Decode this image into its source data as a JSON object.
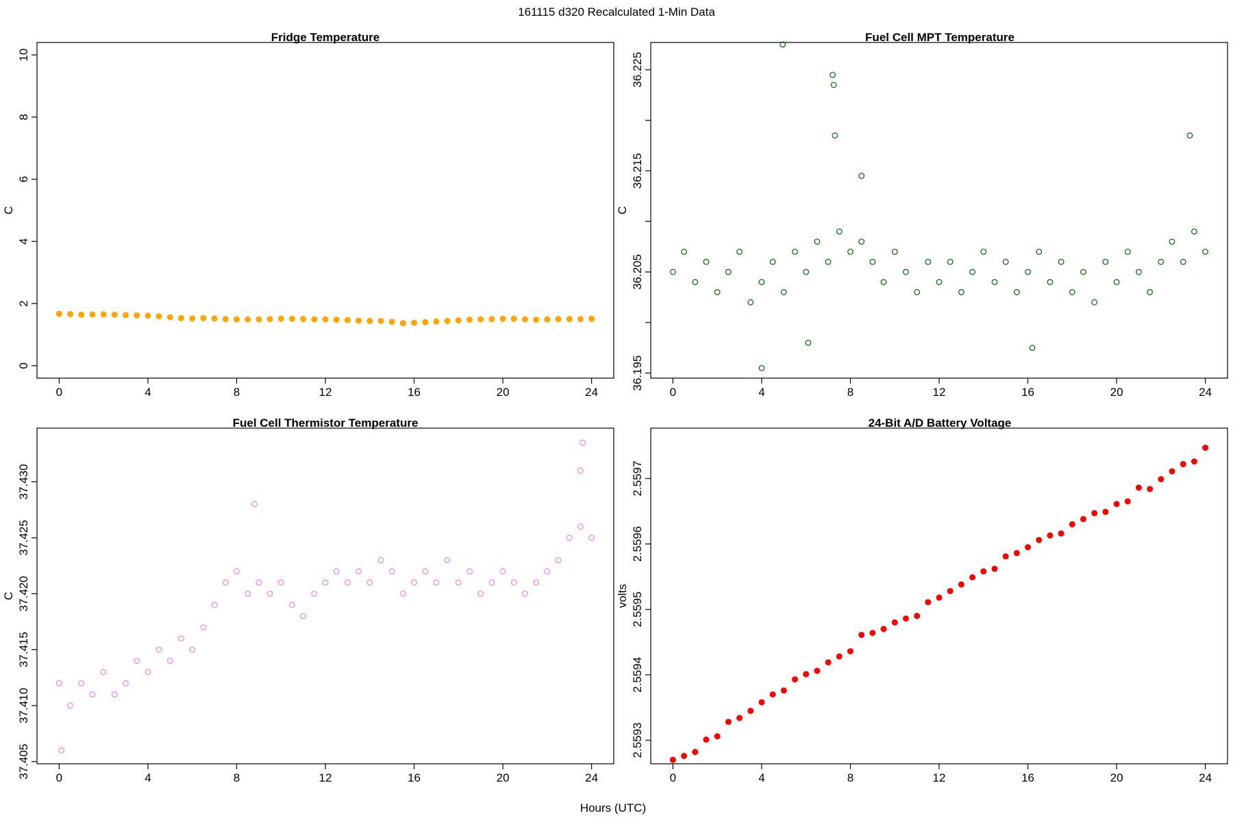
{
  "figure": {
    "suptitle": "161115   d320   Recalculated 1-Min Data",
    "xlabel": "Hours (UTC)"
  },
  "chart_data": [
    {
      "id": "fridge",
      "type": "scatter",
      "title": "Fridge Temperature",
      "ylabel": "C",
      "color": "#FFA500",
      "filled": true,
      "xlim": [
        -1,
        25
      ],
      "ylim": [
        -0.4,
        10.4
      ],
      "xticks": [
        0,
        4,
        8,
        12,
        16,
        20,
        24
      ],
      "xtick_labels": [
        "0",
        "4",
        "8",
        "12",
        "16",
        "20",
        "24"
      ],
      "yticks": [
        0,
        2,
        4,
        6,
        8,
        10
      ],
      "ytick_labels": [
        "0",
        "2",
        "4",
        "6",
        "8",
        "10"
      ],
      "x": [
        0,
        0.5,
        1,
        1.5,
        2,
        2.5,
        3,
        3.5,
        4,
        4.5,
        5,
        5.5,
        6,
        6.5,
        7,
        7.5,
        8,
        8.5,
        9,
        9.5,
        10,
        10.5,
        11,
        11.5,
        12,
        12.5,
        13,
        13.5,
        14,
        14.5,
        15,
        15.5,
        16,
        16.5,
        17,
        17.5,
        18,
        18.5,
        19,
        19.5,
        20,
        20.5,
        21,
        21.5,
        22,
        22.5,
        23,
        23.5,
        24
      ],
      "y": [
        1.67,
        1.66,
        1.64,
        1.65,
        1.65,
        1.64,
        1.63,
        1.62,
        1.61,
        1.59,
        1.56,
        1.53,
        1.52,
        1.53,
        1.52,
        1.5,
        1.49,
        1.49,
        1.49,
        1.5,
        1.51,
        1.51,
        1.5,
        1.49,
        1.49,
        1.48,
        1.47,
        1.45,
        1.44,
        1.44,
        1.41,
        1.37,
        1.38,
        1.4,
        1.42,
        1.44,
        1.46,
        1.48,
        1.49,
        1.5,
        1.51,
        1.51,
        1.49,
        1.48,
        1.49,
        1.5,
        1.5,
        1.5,
        1.51
      ]
    },
    {
      "id": "mpt",
      "type": "scatter",
      "title": "Fuel Cell MPT Temperature",
      "ylabel": "C",
      "color": "#006400",
      "filled": false,
      "xlim": [
        -1,
        25
      ],
      "ylim": [
        36.1945,
        36.2277
      ],
      "xticks": [
        0,
        4,
        8,
        12,
        16,
        20,
        24
      ],
      "xtick_labels": [
        "0",
        "4",
        "8",
        "12",
        "16",
        "20",
        "24"
      ],
      "yticks": [
        36.195,
        36.2,
        36.205,
        36.21,
        36.215,
        36.22,
        36.225
      ],
      "ytick_labels": [
        "36.195",
        "",
        "36.205",
        "",
        "36.215",
        "",
        "36.225"
      ],
      "x": [
        0,
        0.5,
        1,
        1.5,
        2,
        2.5,
        3,
        3.5,
        4,
        4.5,
        5,
        5.5,
        6,
        6.5,
        7,
        7.5,
        8,
        8.5,
        9,
        9.5,
        10,
        10.5,
        11,
        11.5,
        12,
        12.5,
        13,
        13.5,
        14,
        14.5,
        15,
        15.5,
        16,
        16.5,
        17,
        17.5,
        18,
        18.5,
        19,
        19.5,
        20,
        20.5,
        21,
        21.5,
        22,
        22.5,
        23,
        23.5,
        24,
        4,
        4.95,
        7.2,
        7.25,
        7.3,
        8.5,
        23.3,
        6.1,
        16.2
      ],
      "y": [
        36.205,
        36.207,
        36.204,
        36.206,
        36.203,
        36.205,
        36.207,
        36.202,
        36.204,
        36.206,
        36.203,
        36.207,
        36.205,
        36.208,
        36.206,
        36.209,
        36.207,
        36.208,
        36.206,
        36.204,
        36.207,
        36.205,
        36.203,
        36.206,
        36.204,
        36.206,
        36.203,
        36.205,
        36.207,
        36.204,
        36.206,
        36.203,
        36.205,
        36.207,
        36.204,
        36.206,
        36.203,
        36.205,
        36.202,
        36.206,
        36.204,
        36.207,
        36.205,
        36.203,
        36.206,
        36.208,
        36.206,
        36.209,
        36.207,
        36.1955,
        36.2275,
        36.2245,
        36.2235,
        36.2185,
        36.2145,
        36.2185,
        36.198,
        36.1975
      ]
    },
    {
      "id": "thermistor",
      "type": "scatter",
      "title": "Fuel Cell Thermistor Temperature",
      "ylabel": "C",
      "color": "#EE82EE",
      "filled": false,
      "xlim": [
        -1,
        25
      ],
      "ylim": [
        37.4048,
        37.4348
      ],
      "xticks": [
        0,
        4,
        8,
        12,
        16,
        20,
        24
      ],
      "xtick_labels": [
        "0",
        "4",
        "8",
        "12",
        "16",
        "20",
        "24"
      ],
      "yticks": [
        37.405,
        37.41,
        37.415,
        37.42,
        37.425,
        37.43
      ],
      "ytick_labels": [
        "37.405",
        "37.410",
        "37.415",
        "37.420",
        "37.425",
        "37.430"
      ],
      "x": [
        0,
        0.5,
        1,
        1.5,
        2,
        2.5,
        3,
        3.5,
        4,
        4.5,
        5,
        5.5,
        6,
        6.5,
        7,
        7.5,
        8,
        8.5,
        9,
        9.5,
        10,
        10.5,
        11,
        11.5,
        12,
        12.5,
        13,
        13.5,
        14,
        14.5,
        15,
        15.5,
        16,
        16.5,
        17,
        17.5,
        18,
        18.5,
        19,
        19.5,
        20,
        20.5,
        21,
        21.5,
        22,
        22.5,
        23,
        23.5,
        24,
        0.1,
        23.6,
        8.8,
        23.5
      ],
      "y": [
        37.412,
        37.41,
        37.412,
        37.411,
        37.413,
        37.411,
        37.412,
        37.414,
        37.413,
        37.415,
        37.414,
        37.416,
        37.415,
        37.417,
        37.419,
        37.421,
        37.422,
        37.42,
        37.421,
        37.42,
        37.421,
        37.419,
        37.418,
        37.42,
        37.421,
        37.422,
        37.421,
        37.422,
        37.421,
        37.423,
        37.422,
        37.42,
        37.421,
        37.422,
        37.421,
        37.423,
        37.421,
        37.422,
        37.42,
        37.421,
        37.422,
        37.421,
        37.42,
        37.421,
        37.422,
        37.423,
        37.425,
        37.426,
        37.425,
        37.406,
        37.4335,
        37.428,
        37.431
      ]
    },
    {
      "id": "battery",
      "type": "scatter",
      "title": "24-Bit A/D Battery Voltage",
      "ylabel": "volts",
      "color": "#FF0000",
      "filled": true,
      "xlim": [
        -1,
        25
      ],
      "ylim": [
        2.559264,
        2.559777
      ],
      "xticks": [
        0,
        4,
        8,
        12,
        16,
        20,
        24
      ],
      "xtick_labels": [
        "0",
        "4",
        "8",
        "12",
        "16",
        "20",
        "24"
      ],
      "yticks": [
        2.5593,
        2.5594,
        2.5595,
        2.5596,
        2.5597
      ],
      "ytick_labels": [
        "2.5593",
        "2.5594",
        "2.5595",
        "2.5596",
        "2.5597"
      ],
      "x": [
        0,
        0.5,
        1,
        1.5,
        2,
        2.5,
        3,
        3.5,
        4,
        4.5,
        5,
        5.5,
        6,
        6.5,
        7,
        7.5,
        8,
        8.5,
        9,
        9.5,
        10,
        10.5,
        11,
        11.5,
        12,
        12.5,
        13,
        13.5,
        14,
        14.5,
        15,
        15.5,
        16,
        16.5,
        17,
        17.5,
        18,
        18.5,
        19,
        19.5,
        20,
        20.5,
        21,
        21.5,
        22,
        22.5,
        23,
        23.5,
        24
      ],
      "y": [
        2.55927,
        2.559276,
        2.559282,
        2.559301,
        2.559306,
        2.559328,
        2.559334,
        2.559345,
        2.559358,
        2.55937,
        2.559376,
        2.559393,
        2.559401,
        2.559406,
        2.559419,
        2.559428,
        2.559436,
        2.559461,
        2.559464,
        2.55947,
        2.55948,
        2.559486,
        2.55949,
        2.559511,
        2.559518,
        2.559528,
        2.559538,
        2.559549,
        2.559558,
        2.559562,
        2.559581,
        2.559586,
        2.559595,
        2.559606,
        2.559613,
        2.559616,
        2.55963,
        2.559638,
        2.559647,
        2.559649,
        2.559661,
        2.559665,
        2.559686,
        2.559684,
        2.559699,
        2.559711,
        2.559722,
        2.559726,
        2.559747
      ]
    }
  ]
}
